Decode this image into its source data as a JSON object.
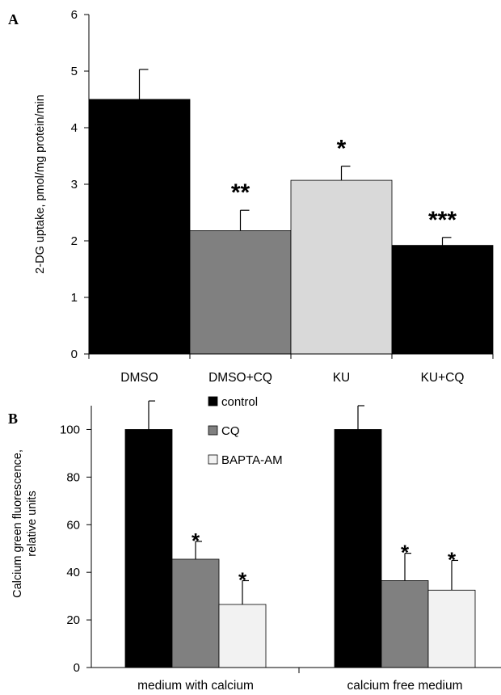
{
  "colors": {
    "black": "#000000",
    "gray": "#808080",
    "light": "#d9d9d9",
    "lightest": "#f2f2f2",
    "axis": "#000000",
    "error": "#000000"
  },
  "chart_data": [
    {
      "panel": "A",
      "type": "bar",
      "title": "",
      "ylabel": "2-DG uptake, pmol/mg protein/min",
      "xlabel": "",
      "categories": [
        "DMSO",
        "DMSO+CQ",
        "KU",
        "KU+CQ"
      ],
      "values": [
        4.5,
        2.18,
        3.07,
        1.92
      ],
      "errors": [
        0.53,
        0.36,
        0.25,
        0.14
      ],
      "bar_colors": [
        "#000000",
        "#808080",
        "#d9d9d9",
        "#000000"
      ],
      "significance": [
        "",
        "**",
        "*",
        "***"
      ],
      "ylim": [
        0,
        6
      ],
      "yticks": [
        "0",
        "1",
        "2",
        "3",
        "4",
        "5",
        "6"
      ],
      "grid": false
    },
    {
      "panel": "B",
      "type": "bar",
      "title": "",
      "ylabel_line1": "Calcium green fluorescence,",
      "ylabel_line2": "relative units",
      "xlabel": "",
      "categories": [
        "medium with calcium",
        "calcium free medium"
      ],
      "series": [
        {
          "name": "control",
          "color": "#000000",
          "values": [
            100,
            100
          ],
          "errors": [
            12,
            10
          ],
          "significance": [
            "",
            ""
          ]
        },
        {
          "name": "CQ",
          "color": "#808080",
          "values": [
            45.5,
            36.5
          ],
          "errors": [
            7.5,
            11.5
          ],
          "significance": [
            "*",
            "*"
          ]
        },
        {
          "name": "BAPTA-AM",
          "color": "#f2f2f2",
          "values": [
            26.5,
            32.5
          ],
          "errors": [
            10,
            12.5
          ],
          "significance": [
            "*",
            "*"
          ]
        }
      ],
      "ylim": [
        0,
        110
      ],
      "yticks": [
        "0",
        "20",
        "40",
        "60",
        "80",
        "100"
      ],
      "legend_position": "top-center",
      "grid": false
    }
  ]
}
